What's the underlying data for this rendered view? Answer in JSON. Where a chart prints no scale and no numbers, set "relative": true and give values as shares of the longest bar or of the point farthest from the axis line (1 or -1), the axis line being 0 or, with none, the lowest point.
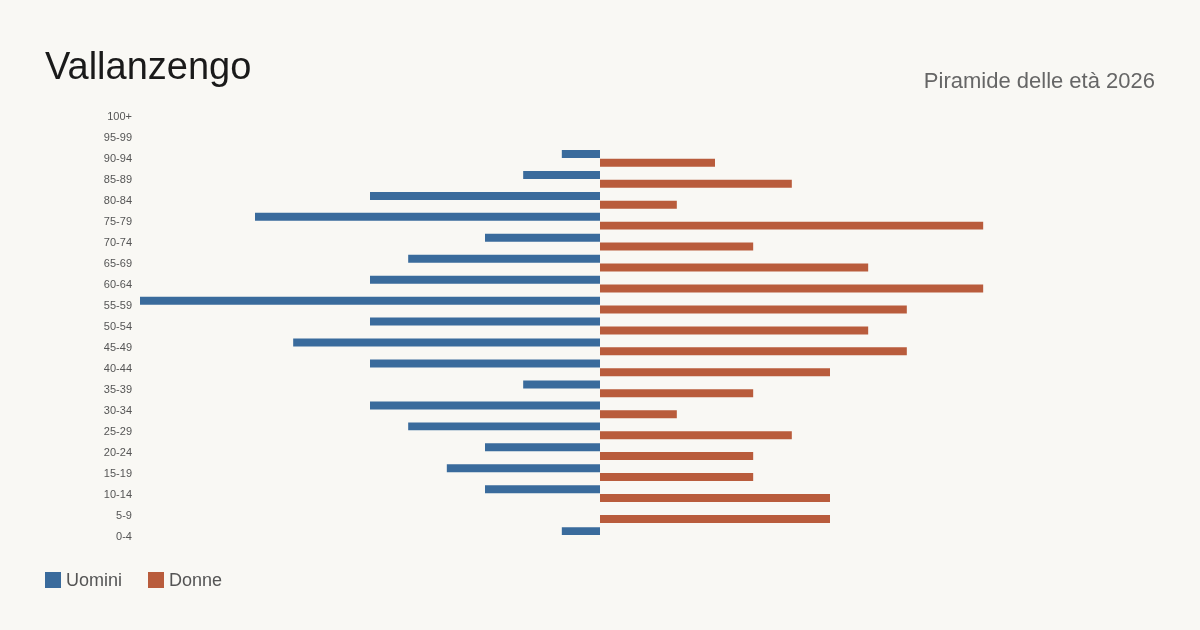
{
  "chart_data": {
    "type": "bar",
    "orientation": "horizontal",
    "relative": true,
    "title": "Vallanzengo",
    "subtitle": "Piramide delle età 2026",
    "categories": [
      "100+",
      "95-99",
      "90-94",
      "85-89",
      "80-84",
      "75-79",
      "70-74",
      "65-69",
      "60-64",
      "55-59",
      "50-54",
      "45-49",
      "40-44",
      "35-39",
      "30-34",
      "25-29",
      "20-24",
      "15-19",
      "10-14",
      "5-9",
      "0-4"
    ],
    "series": [
      {
        "name": "Uomini",
        "color": "#3a6b9c",
        "values": [
          0,
          0,
          -0.083,
          -0.167,
          -0.5,
          -0.75,
          -0.25,
          -0.417,
          -0.5,
          -1,
          -0.5,
          -0.667,
          -0.5,
          -0.167,
          -0.5,
          -0.417,
          -0.25,
          -0.333,
          -0.25,
          0,
          -0.083
        ]
      },
      {
        "name": "Donne",
        "color": "#b95c3c",
        "values": [
          0,
          0,
          0.25,
          0.417,
          0.167,
          0.833,
          0.333,
          0.583,
          0.833,
          0.667,
          0.583,
          0.667,
          0.5,
          0.333,
          0.167,
          0.417,
          0.333,
          0.333,
          0.5,
          0.5,
          0
        ]
      }
    ],
    "legend": "bottom left",
    "grid": false
  }
}
